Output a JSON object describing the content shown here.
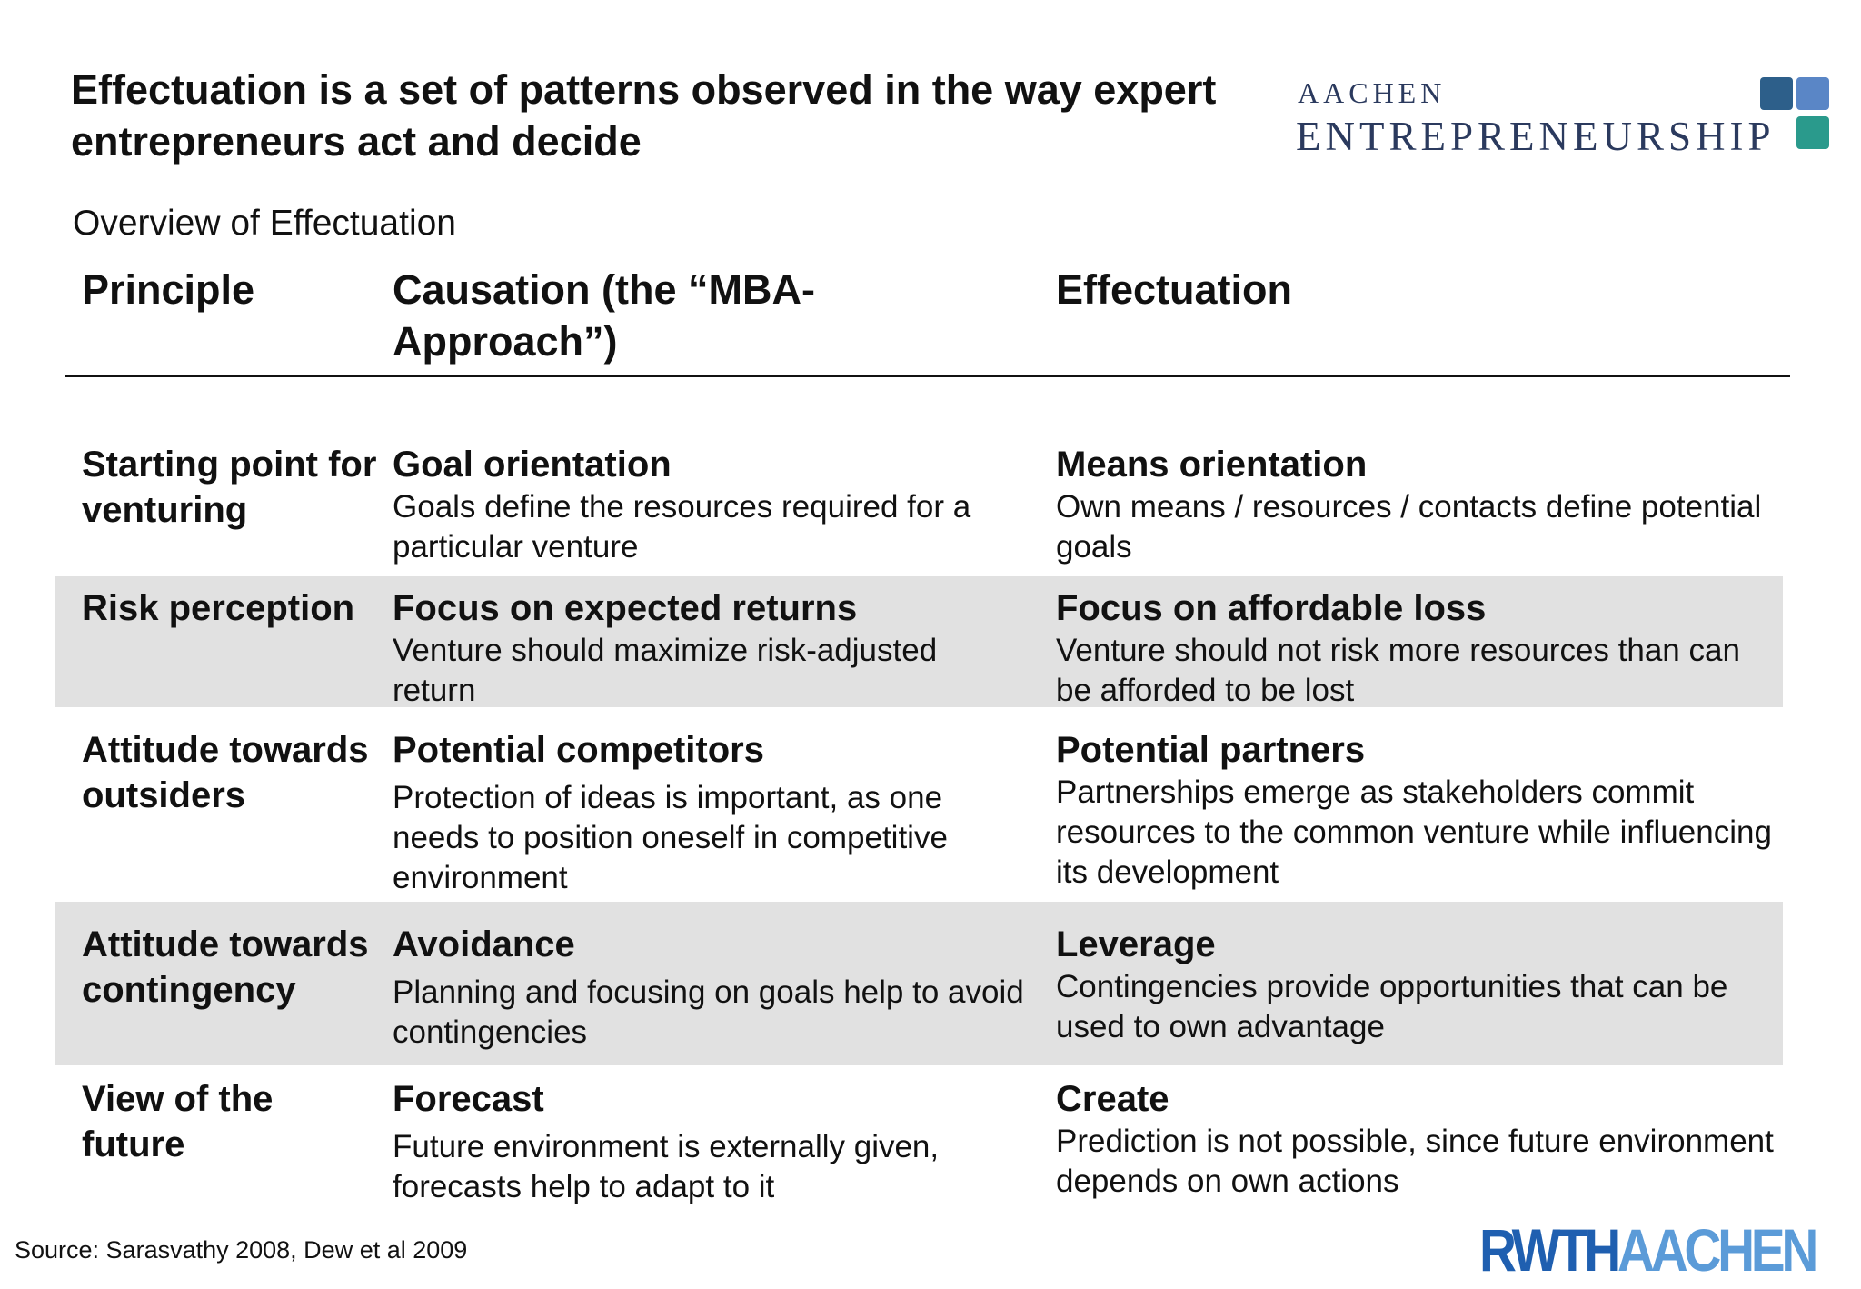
{
  "title": "Effectuation is a set of patterns observed in the way expert entrepreneurs act and decide",
  "logo": {
    "line1": "AACHEN",
    "line2": "ENTREPRENEURSHIP",
    "colors": [
      "#2d5f8a",
      "#5a86c6",
      "#2a9a8c"
    ]
  },
  "subtitle": "Overview of Effectuation",
  "table": {
    "headers": {
      "principle": "Principle",
      "causation": "Causation (the “MBA-Approach”)",
      "effectuation": "Effectuation"
    },
    "rows": [
      {
        "principle": "Starting point for venturing",
        "causation_title": "Goal orientation",
        "causation_text": "Goals define the resources required for a particular venture",
        "effectuation_title": "Means orientation",
        "effectuation_text": "Own means / resources / contacts define potential goals"
      },
      {
        "principle": "Risk perception",
        "causation_title": "Focus on expected returns",
        "causation_text": "Venture should maximize risk-adjusted return",
        "effectuation_title": "Focus on affordable loss",
        "effectuation_text": "Venture should not risk more resources than can be afforded to be lost"
      },
      {
        "principle": "Attitude towards outsiders",
        "causation_title": "Potential competitors",
        "causation_text": "Protection of ideas is important, as one needs to position oneself in competitive environment",
        "effectuation_title": "Potential partners",
        "effectuation_text": "Partnerships emerge as stakeholders commit resources to the common venture while influencing its development"
      },
      {
        "principle": "Attitude towards contingency",
        "causation_title": "Avoidance",
        "causation_text": "Planning and focusing on goals help to avoid contingencies",
        "effectuation_title": "Leverage",
        "effectuation_text": "Contingencies provide opportunities that can be used to own advantage"
      },
      {
        "principle": "View of the future",
        "causation_title": "Forecast",
        "causation_text": "Future environment is externally given, forecasts help to adapt to it",
        "effectuation_title": "Create",
        "effectuation_text": "Prediction is not possible, since future environment depends on own actions"
      }
    ]
  },
  "source": "Source: Sarasvathy 2008, Dew et al 2009",
  "footer_logo": {
    "part1": "RWTH",
    "part2": "AACHEN"
  }
}
